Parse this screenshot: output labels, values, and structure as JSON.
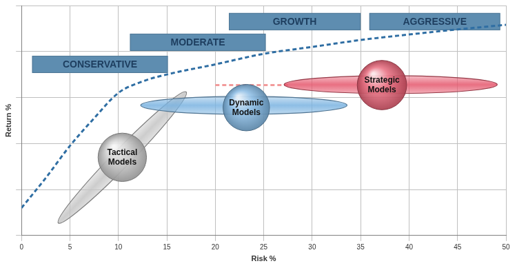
{
  "chart_data": {
    "type": "line",
    "x_label": "Risk %",
    "y_label": "Return %",
    "x": [
      0,
      2.5,
      5,
      7.5,
      10,
      12.5,
      15,
      20,
      25,
      30,
      35,
      40,
      45,
      50
    ],
    "values": [
      0.6,
      1.25,
      1.95,
      2.55,
      3.1,
      3.35,
      3.5,
      3.72,
      3.95,
      4.1,
      4.25,
      4.37,
      4.48,
      4.58
    ],
    "color": "#2f6ea3",
    "line_style": "dashed",
    "xlim": [
      0,
      50
    ],
    "xticks": [
      0,
      5,
      10,
      15,
      20,
      25,
      30,
      35,
      40,
      45,
      50
    ],
    "ylim": [
      0,
      5
    ],
    "yticks": [
      0,
      1,
      2,
      3,
      4,
      5
    ],
    "grid": true,
    "tick_labels": "x",
    "annotations": [
      {
        "text": "CONSERVATIVE",
        "x": [
          1.1,
          15.1
        ],
        "y": 3.72,
        "color": "#5e8db0"
      },
      {
        "text": "MODERATE",
        "x": [
          11.2,
          25.2
        ],
        "y": 4.2,
        "color": "#5e8db0"
      },
      {
        "text": "GROWTH",
        "x": [
          21.4,
          35
        ],
        "y": 4.65,
        "color": "#5e8db0"
      },
      {
        "text": "AGGRESSIVE",
        "x": [
          35.9,
          49.4
        ],
        "y": 4.65,
        "color": "#5e8db0"
      }
    ],
    "models": [
      {
        "name": "Tactical Models",
        "x": 10.4,
        "y": 1.7,
        "size": 2.5,
        "color": "#c4c4c4",
        "range": {
          "from": [
            3.8,
            0.27
          ],
          "to": [
            17,
            3.12
          ]
        }
      },
      {
        "name": "Dynamic Models",
        "x": 23.2,
        "y": 2.78,
        "size": 2.4,
        "color": "#79b2e0",
        "range": {
          "from": [
            12.3,
            2.83
          ],
          "to": [
            33.6,
            2.83
          ]
        }
      },
      {
        "name": "Strategic Models",
        "x": 37.2,
        "y": 3.27,
        "size": 2.55,
        "color": "#e5566c",
        "range": {
          "from": [
            27.1,
            3.28
          ],
          "to": [
            49.1,
            3.28
          ]
        }
      }
    ],
    "dashed_line": {
      "x": [
        20,
        27.5
      ],
      "y": 3.27,
      "color": "#f29a9a",
      "line_style": "dashed"
    }
  }
}
